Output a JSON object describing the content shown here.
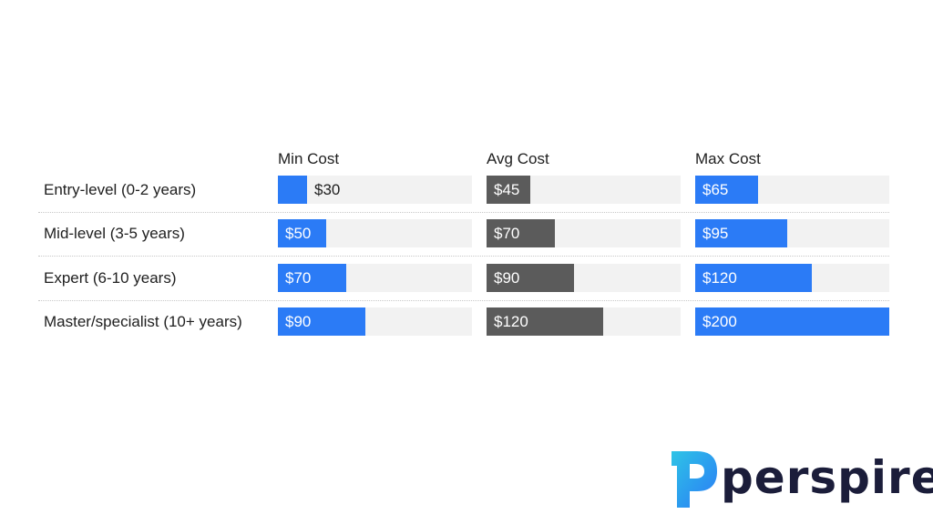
{
  "chart_data": {
    "type": "bar",
    "categories": [
      "Entry-level (0-2 years)",
      "Mid-level (3-5 years)",
      "Expert (6-10 years)",
      "Master/specialist (10+ years)"
    ],
    "series": [
      {
        "name": "Min Cost",
        "values": [
          30,
          50,
          70,
          90
        ],
        "labels": [
          "$30",
          "$50",
          "$70",
          "$90"
        ],
        "color": "#2b7bf6"
      },
      {
        "name": "Avg Cost",
        "values": [
          45,
          70,
          90,
          120
        ],
        "labels": [
          "$45",
          "$70",
          "$90",
          "$120"
        ],
        "color": "#5b5b5b"
      },
      {
        "name": "Max Cost",
        "values": [
          65,
          95,
          120,
          200
        ],
        "labels": [
          "$65",
          "$95",
          "$120",
          "$200"
        ],
        "color": "#2b7bf6"
      }
    ],
    "xlim": [
      0,
      200
    ],
    "track_color": "#f2f2f2",
    "grid": false,
    "legend": "none",
    "title": "",
    "xlabel": "",
    "ylabel": ""
  },
  "logo": {
    "text": "perspire",
    "colors": [
      "#2ec4e6",
      "#2b7bf6",
      "#1b1d3a"
    ]
  }
}
